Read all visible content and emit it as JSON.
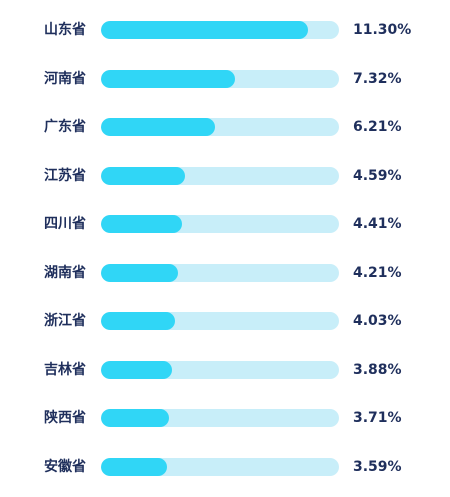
{
  "chart_data": {
    "type": "bar",
    "orientation": "horizontal",
    "categories": [
      "山东省",
      "河南省",
      "广东省",
      "江苏省",
      "四川省",
      "湖南省",
      "浙江省",
      "吉林省",
      "陕西省",
      "安徽省"
    ],
    "values": [
      11.3,
      7.32,
      6.21,
      4.59,
      4.41,
      4.21,
      4.03,
      3.88,
      3.71,
      3.59
    ],
    "value_labels": [
      "11.30%",
      "7.32%",
      "6.21%",
      "4.59%",
      "4.41%",
      "4.21%",
      "4.03%",
      "3.88%",
      "3.71%",
      "3.59%"
    ],
    "xlim": [
      0,
      13
    ],
    "grid": false,
    "legend": "none",
    "colors": {
      "bar": "#30d6f6",
      "track": "#c8eef9",
      "text": "#1f2f5c"
    }
  }
}
